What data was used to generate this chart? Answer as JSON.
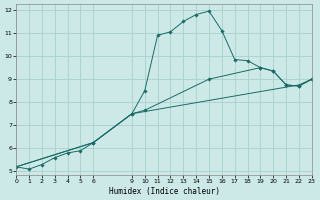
{
  "xlabel": "Humidex (Indice chaleur)",
  "bg_color": "#cce9e7",
  "grid_color": "#aacfcc",
  "line_color": "#1a6b66",
  "x_min": 0,
  "x_max": 23,
  "y_min": 5,
  "y_max": 12,
  "x_ticks": [
    0,
    1,
    2,
    3,
    4,
    5,
    6,
    9,
    10,
    11,
    12,
    13,
    14,
    15,
    16,
    17,
    18,
    19,
    20,
    21,
    22,
    23
  ],
  "y_ticks": [
    5,
    6,
    7,
    8,
    9,
    10,
    11,
    12
  ],
  "line1_x": [
    0,
    1,
    2,
    3,
    4,
    5,
    6,
    9,
    10,
    11,
    12,
    13,
    14,
    15,
    16,
    17,
    18,
    19,
    20,
    21,
    22,
    23
  ],
  "line1_y": [
    5.2,
    5.1,
    5.3,
    5.6,
    5.8,
    5.9,
    6.25,
    7.5,
    8.5,
    10.9,
    11.05,
    11.5,
    11.8,
    11.95,
    11.1,
    9.85,
    9.8,
    9.5,
    9.35,
    8.75,
    8.7,
    9.0
  ],
  "line2_x": [
    0,
    6,
    9,
    22,
    23
  ],
  "line2_y": [
    5.2,
    6.25,
    7.5,
    8.75,
    9.0
  ],
  "line3_x": [
    0,
    6,
    9,
    10,
    15,
    19,
    20,
    21,
    22,
    23
  ],
  "line3_y": [
    5.2,
    6.25,
    7.5,
    7.65,
    9.0,
    9.5,
    9.35,
    8.75,
    8.7,
    9.0
  ]
}
